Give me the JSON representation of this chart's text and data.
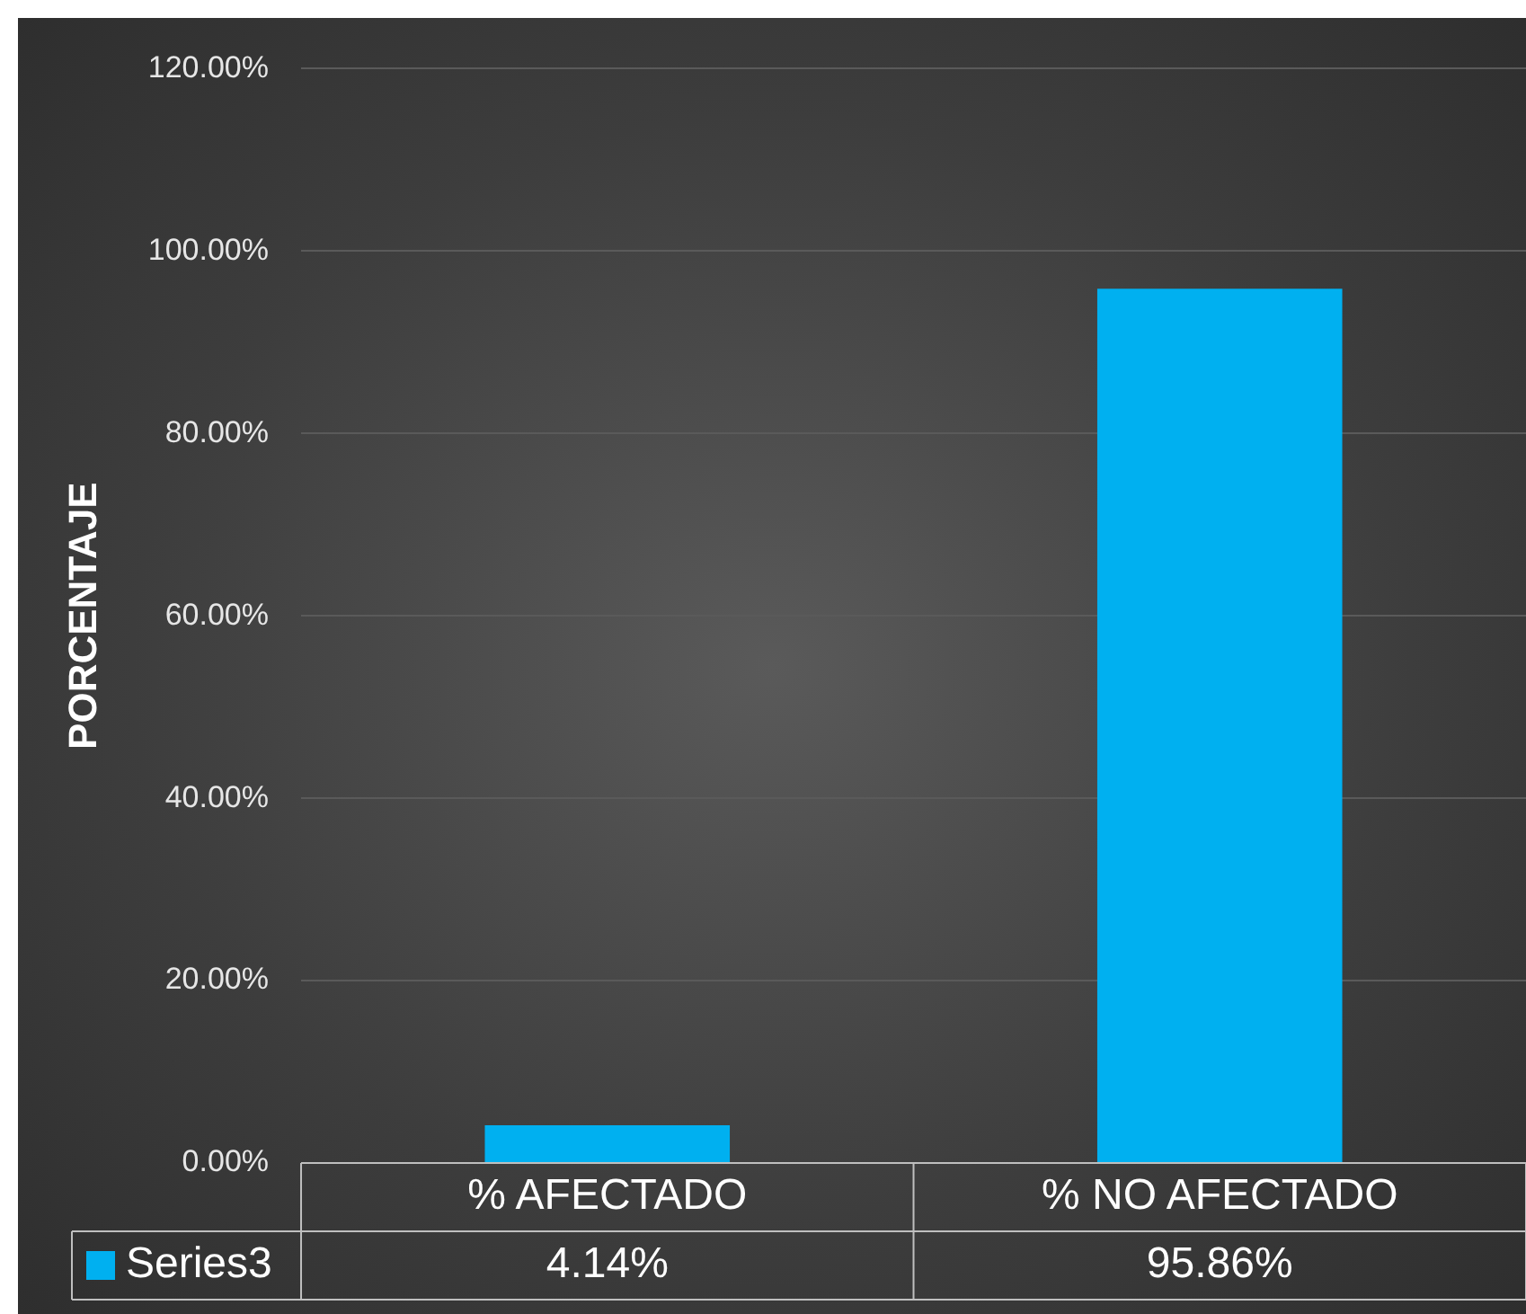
{
  "chart_data": {
    "type": "bar",
    "ylabel": "PORCENTAJE",
    "categories": [
      "% AFECTADO",
      "% NO AFECTADO"
    ],
    "series": [
      {
        "name": "Series3",
        "color": "#00b0f0",
        "values": [
          4.14,
          95.86
        ]
      }
    ],
    "value_labels": [
      "4.14%",
      "95.86%"
    ],
    "ylim": [
      0,
      120
    ],
    "yticks": [
      {
        "value": 0,
        "label": "0.00%"
      },
      {
        "value": 20,
        "label": "20.00%"
      },
      {
        "value": 40,
        "label": "40.00%"
      },
      {
        "value": 60,
        "label": "60.00%"
      },
      {
        "value": 80,
        "label": "80.00%"
      },
      {
        "value": 100,
        "label": "100.00%"
      },
      {
        "value": 120,
        "label": "120.00%"
      }
    ],
    "grid": "y",
    "legend": "bottom"
  }
}
